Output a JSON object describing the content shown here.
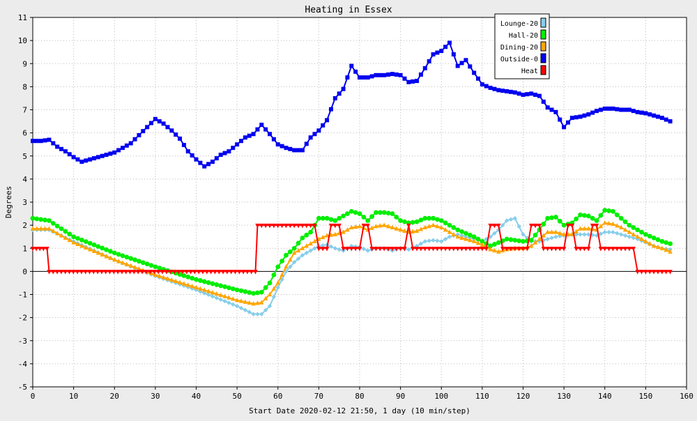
{
  "chart_data": {
    "type": "line",
    "title": "Heating in Essex",
    "xlabel": "Start Date 2020-02-12 21:50, 1 day (10 min/step)",
    "ylabel": "Degrees",
    "xlim": [
      0,
      160
    ],
    "ylim": [
      -5,
      11
    ],
    "x_ticks": [
      0,
      10,
      20,
      30,
      40,
      50,
      60,
      70,
      80,
      90,
      100,
      110,
      120,
      130,
      140,
      150,
      160
    ],
    "y_ticks": [
      -5,
      -4,
      -3,
      -2,
      -1,
      0,
      1,
      2,
      3,
      4,
      5,
      6,
      7,
      8,
      9,
      10,
      11
    ],
    "grid": true,
    "legend_position": "top-right",
    "series": [
      {
        "name": "Lounge-20",
        "color": "#87ceeb",
        "marker": "diamond",
        "points": [
          [
            0,
            1.8
          ],
          [
            4,
            1.8
          ],
          [
            10,
            1.3
          ],
          [
            20,
            0.5
          ],
          [
            30,
            -0.2
          ],
          [
            40,
            -0.8
          ],
          [
            50,
            -1.5
          ],
          [
            54,
            -1.85
          ],
          [
            56,
            -1.85
          ],
          [
            58,
            -1.5
          ],
          [
            60,
            -0.7
          ],
          [
            62,
            0
          ],
          [
            64,
            0.4
          ],
          [
            66,
            0.7
          ],
          [
            68,
            0.9
          ],
          [
            70,
            1.1
          ],
          [
            72,
            1.15
          ],
          [
            74,
            1.0
          ],
          [
            76,
            0.9
          ],
          [
            78,
            1.1
          ],
          [
            80,
            1.05
          ],
          [
            82,
            0.9
          ],
          [
            84,
            1.0
          ],
          [
            86,
            1.0
          ],
          [
            88,
            0.9
          ],
          [
            90,
            1.0
          ],
          [
            92,
            0.95
          ],
          [
            94,
            1.1
          ],
          [
            96,
            1.3
          ],
          [
            98,
            1.35
          ],
          [
            100,
            1.3
          ],
          [
            102,
            1.5
          ],
          [
            104,
            1.6
          ],
          [
            106,
            1.5
          ],
          [
            108,
            1.4
          ],
          [
            110,
            1.3
          ],
          [
            112,
            1.5
          ],
          [
            114,
            1.8
          ],
          [
            116,
            2.2
          ],
          [
            118,
            2.3
          ],
          [
            120,
            1.6
          ],
          [
            122,
            1.3
          ],
          [
            124,
            1.3
          ],
          [
            126,
            1.4
          ],
          [
            128,
            1.5
          ],
          [
            130,
            1.55
          ],
          [
            132,
            1.6
          ],
          [
            134,
            1.6
          ],
          [
            136,
            1.6
          ],
          [
            138,
            1.55
          ],
          [
            140,
            1.7
          ],
          [
            142,
            1.7
          ],
          [
            144,
            1.6
          ],
          [
            146,
            1.5
          ],
          [
            148,
            1.4
          ],
          [
            150,
            1.25
          ],
          [
            152,
            1.1
          ],
          [
            154,
            1.0
          ],
          [
            156,
            0.95
          ]
        ]
      },
      {
        "name": "Hall-20",
        "color": "#00ee00",
        "marker": "circle",
        "points": [
          [
            0,
            2.3
          ],
          [
            4,
            2.2
          ],
          [
            10,
            1.5
          ],
          [
            20,
            0.8
          ],
          [
            30,
            0.2
          ],
          [
            40,
            -0.35
          ],
          [
            50,
            -0.8
          ],
          [
            54,
            -0.95
          ],
          [
            56,
            -0.9
          ],
          [
            58,
            -0.5
          ],
          [
            60,
            0.2
          ],
          [
            62,
            0.7
          ],
          [
            64,
            1.0
          ],
          [
            66,
            1.45
          ],
          [
            68,
            1.7
          ],
          [
            70,
            2.3
          ],
          [
            72,
            2.3
          ],
          [
            74,
            2.2
          ],
          [
            76,
            2.4
          ],
          [
            78,
            2.6
          ],
          [
            80,
            2.5
          ],
          [
            82,
            2.2
          ],
          [
            84,
            2.55
          ],
          [
            86,
            2.55
          ],
          [
            88,
            2.5
          ],
          [
            90,
            2.2
          ],
          [
            92,
            2.1
          ],
          [
            94,
            2.15
          ],
          [
            96,
            2.3
          ],
          [
            98,
            2.3
          ],
          [
            100,
            2.2
          ],
          [
            102,
            2.0
          ],
          [
            104,
            1.8
          ],
          [
            106,
            1.65
          ],
          [
            108,
            1.5
          ],
          [
            110,
            1.3
          ],
          [
            112,
            1.1
          ],
          [
            114,
            1.25
          ],
          [
            116,
            1.4
          ],
          [
            118,
            1.35
          ],
          [
            120,
            1.3
          ],
          [
            122,
            1.35
          ],
          [
            124,
            1.8
          ],
          [
            126,
            2.3
          ],
          [
            128,
            2.35
          ],
          [
            130,
            2.0
          ],
          [
            132,
            2.1
          ],
          [
            134,
            2.45
          ],
          [
            136,
            2.4
          ],
          [
            138,
            2.2
          ],
          [
            140,
            2.65
          ],
          [
            142,
            2.6
          ],
          [
            144,
            2.3
          ],
          [
            146,
            2.0
          ],
          [
            148,
            1.8
          ],
          [
            150,
            1.6
          ],
          [
            152,
            1.45
          ],
          [
            154,
            1.3
          ],
          [
            156,
            1.2
          ]
        ]
      },
      {
        "name": "Dining-20",
        "color": "#ffa500",
        "marker": "triangle",
        "points": [
          [
            0,
            1.85
          ],
          [
            4,
            1.85
          ],
          [
            10,
            1.25
          ],
          [
            20,
            0.5
          ],
          [
            30,
            -0.15
          ],
          [
            40,
            -0.7
          ],
          [
            50,
            -1.25
          ],
          [
            54,
            -1.4
          ],
          [
            56,
            -1.35
          ],
          [
            58,
            -1.0
          ],
          [
            60,
            -0.5
          ],
          [
            62,
            0.2
          ],
          [
            64,
            0.8
          ],
          [
            66,
            1.0
          ],
          [
            68,
            1.2
          ],
          [
            70,
            1.4
          ],
          [
            72,
            1.55
          ],
          [
            74,
            1.6
          ],
          [
            76,
            1.7
          ],
          [
            78,
            1.9
          ],
          [
            80,
            1.95
          ],
          [
            82,
            1.8
          ],
          [
            84,
            1.95
          ],
          [
            86,
            2.0
          ],
          [
            88,
            1.9
          ],
          [
            90,
            1.8
          ],
          [
            92,
            1.7
          ],
          [
            94,
            1.75
          ],
          [
            96,
            1.9
          ],
          [
            98,
            2.0
          ],
          [
            100,
            1.9
          ],
          [
            102,
            1.7
          ],
          [
            104,
            1.5
          ],
          [
            106,
            1.4
          ],
          [
            108,
            1.3
          ],
          [
            110,
            1.15
          ],
          [
            112,
            0.95
          ],
          [
            114,
            0.85
          ],
          [
            116,
            0.95
          ],
          [
            118,
            1.0
          ],
          [
            120,
            1.0
          ],
          [
            122,
            1.1
          ],
          [
            124,
            1.4
          ],
          [
            126,
            1.7
          ],
          [
            128,
            1.7
          ],
          [
            130,
            1.6
          ],
          [
            132,
            1.6
          ],
          [
            134,
            1.85
          ],
          [
            136,
            1.85
          ],
          [
            138,
            1.8
          ],
          [
            140,
            2.1
          ],
          [
            142,
            2.05
          ],
          [
            144,
            1.9
          ],
          [
            146,
            1.7
          ],
          [
            148,
            1.5
          ],
          [
            150,
            1.3
          ],
          [
            152,
            1.1
          ],
          [
            154,
            1.0
          ],
          [
            156,
            0.85
          ]
        ]
      },
      {
        "name": "Outside-0",
        "color": "#0000ee",
        "marker": "square",
        "points": [
          [
            0,
            5.65
          ],
          [
            2,
            5.65
          ],
          [
            4,
            5.7
          ],
          [
            6,
            5.4
          ],
          [
            8,
            5.2
          ],
          [
            10,
            4.95
          ],
          [
            12,
            4.75
          ],
          [
            14,
            4.85
          ],
          [
            16,
            4.95
          ],
          [
            18,
            5.05
          ],
          [
            20,
            5.15
          ],
          [
            22,
            5.35
          ],
          [
            24,
            5.55
          ],
          [
            26,
            5.9
          ],
          [
            28,
            6.25
          ],
          [
            30,
            6.6
          ],
          [
            32,
            6.4
          ],
          [
            34,
            6.1
          ],
          [
            36,
            5.75
          ],
          [
            38,
            5.2
          ],
          [
            40,
            4.85
          ],
          [
            42,
            4.55
          ],
          [
            44,
            4.75
          ],
          [
            46,
            5.05
          ],
          [
            48,
            5.2
          ],
          [
            50,
            5.5
          ],
          [
            52,
            5.8
          ],
          [
            54,
            5.95
          ],
          [
            56,
            6.35
          ],
          [
            58,
            5.95
          ],
          [
            60,
            5.5
          ],
          [
            62,
            5.35
          ],
          [
            64,
            5.25
          ],
          [
            66,
            5.25
          ],
          [
            68,
            5.8
          ],
          [
            70,
            6.1
          ],
          [
            72,
            6.55
          ],
          [
            74,
            7.5
          ],
          [
            76,
            7.9
          ],
          [
            78,
            8.9
          ],
          [
            80,
            8.4
          ],
          [
            82,
            8.4
          ],
          [
            84,
            8.5
          ],
          [
            86,
            8.5
          ],
          [
            88,
            8.55
          ],
          [
            90,
            8.5
          ],
          [
            92,
            8.2
          ],
          [
            94,
            8.25
          ],
          [
            96,
            8.8
          ],
          [
            98,
            9.4
          ],
          [
            100,
            9.55
          ],
          [
            102,
            9.9
          ],
          [
            104,
            8.9
          ],
          [
            106,
            9.15
          ],
          [
            108,
            8.6
          ],
          [
            110,
            8.1
          ],
          [
            112,
            7.95
          ],
          [
            114,
            7.85
          ],
          [
            116,
            7.8
          ],
          [
            118,
            7.75
          ],
          [
            120,
            7.65
          ],
          [
            122,
            7.7
          ],
          [
            124,
            7.6
          ],
          [
            126,
            7.1
          ],
          [
            128,
            6.9
          ],
          [
            130,
            6.25
          ],
          [
            132,
            6.65
          ],
          [
            134,
            6.7
          ],
          [
            136,
            6.8
          ],
          [
            138,
            6.95
          ],
          [
            140,
            7.05
          ],
          [
            142,
            7.05
          ],
          [
            144,
            7.0
          ],
          [
            146,
            7.0
          ],
          [
            148,
            6.9
          ],
          [
            150,
            6.85
          ],
          [
            152,
            6.75
          ],
          [
            154,
            6.65
          ],
          [
            156,
            6.5
          ]
        ]
      },
      {
        "name": "Heat",
        "color": "#ff0000",
        "marker": "triangle-down",
        "points": [
          [
            0,
            1
          ],
          [
            3.5,
            1
          ],
          [
            4,
            0
          ],
          [
            54.5,
            0
          ],
          [
            55,
            2
          ],
          [
            69,
            2
          ],
          [
            70,
            1
          ],
          [
            72,
            1
          ],
          [
            73,
            2
          ],
          [
            75,
            2
          ],
          [
            76,
            1
          ],
          [
            80,
            1
          ],
          [
            81,
            2
          ],
          [
            82,
            2
          ],
          [
            83,
            1
          ],
          [
            91,
            1
          ],
          [
            92,
            2
          ],
          [
            93,
            1
          ],
          [
            111,
            1
          ],
          [
            112,
            2
          ],
          [
            114,
            2
          ],
          [
            115,
            1
          ],
          [
            121,
            1
          ],
          [
            122,
            2
          ],
          [
            124,
            2
          ],
          [
            125,
            1
          ],
          [
            130,
            1
          ],
          [
            131,
            2
          ],
          [
            132,
            2
          ],
          [
            133,
            1
          ],
          [
            136,
            1
          ],
          [
            137,
            2
          ],
          [
            138,
            2
          ],
          [
            139,
            1
          ],
          [
            147,
            1
          ],
          [
            148,
            0
          ],
          [
            156,
            0
          ]
        ]
      }
    ]
  }
}
